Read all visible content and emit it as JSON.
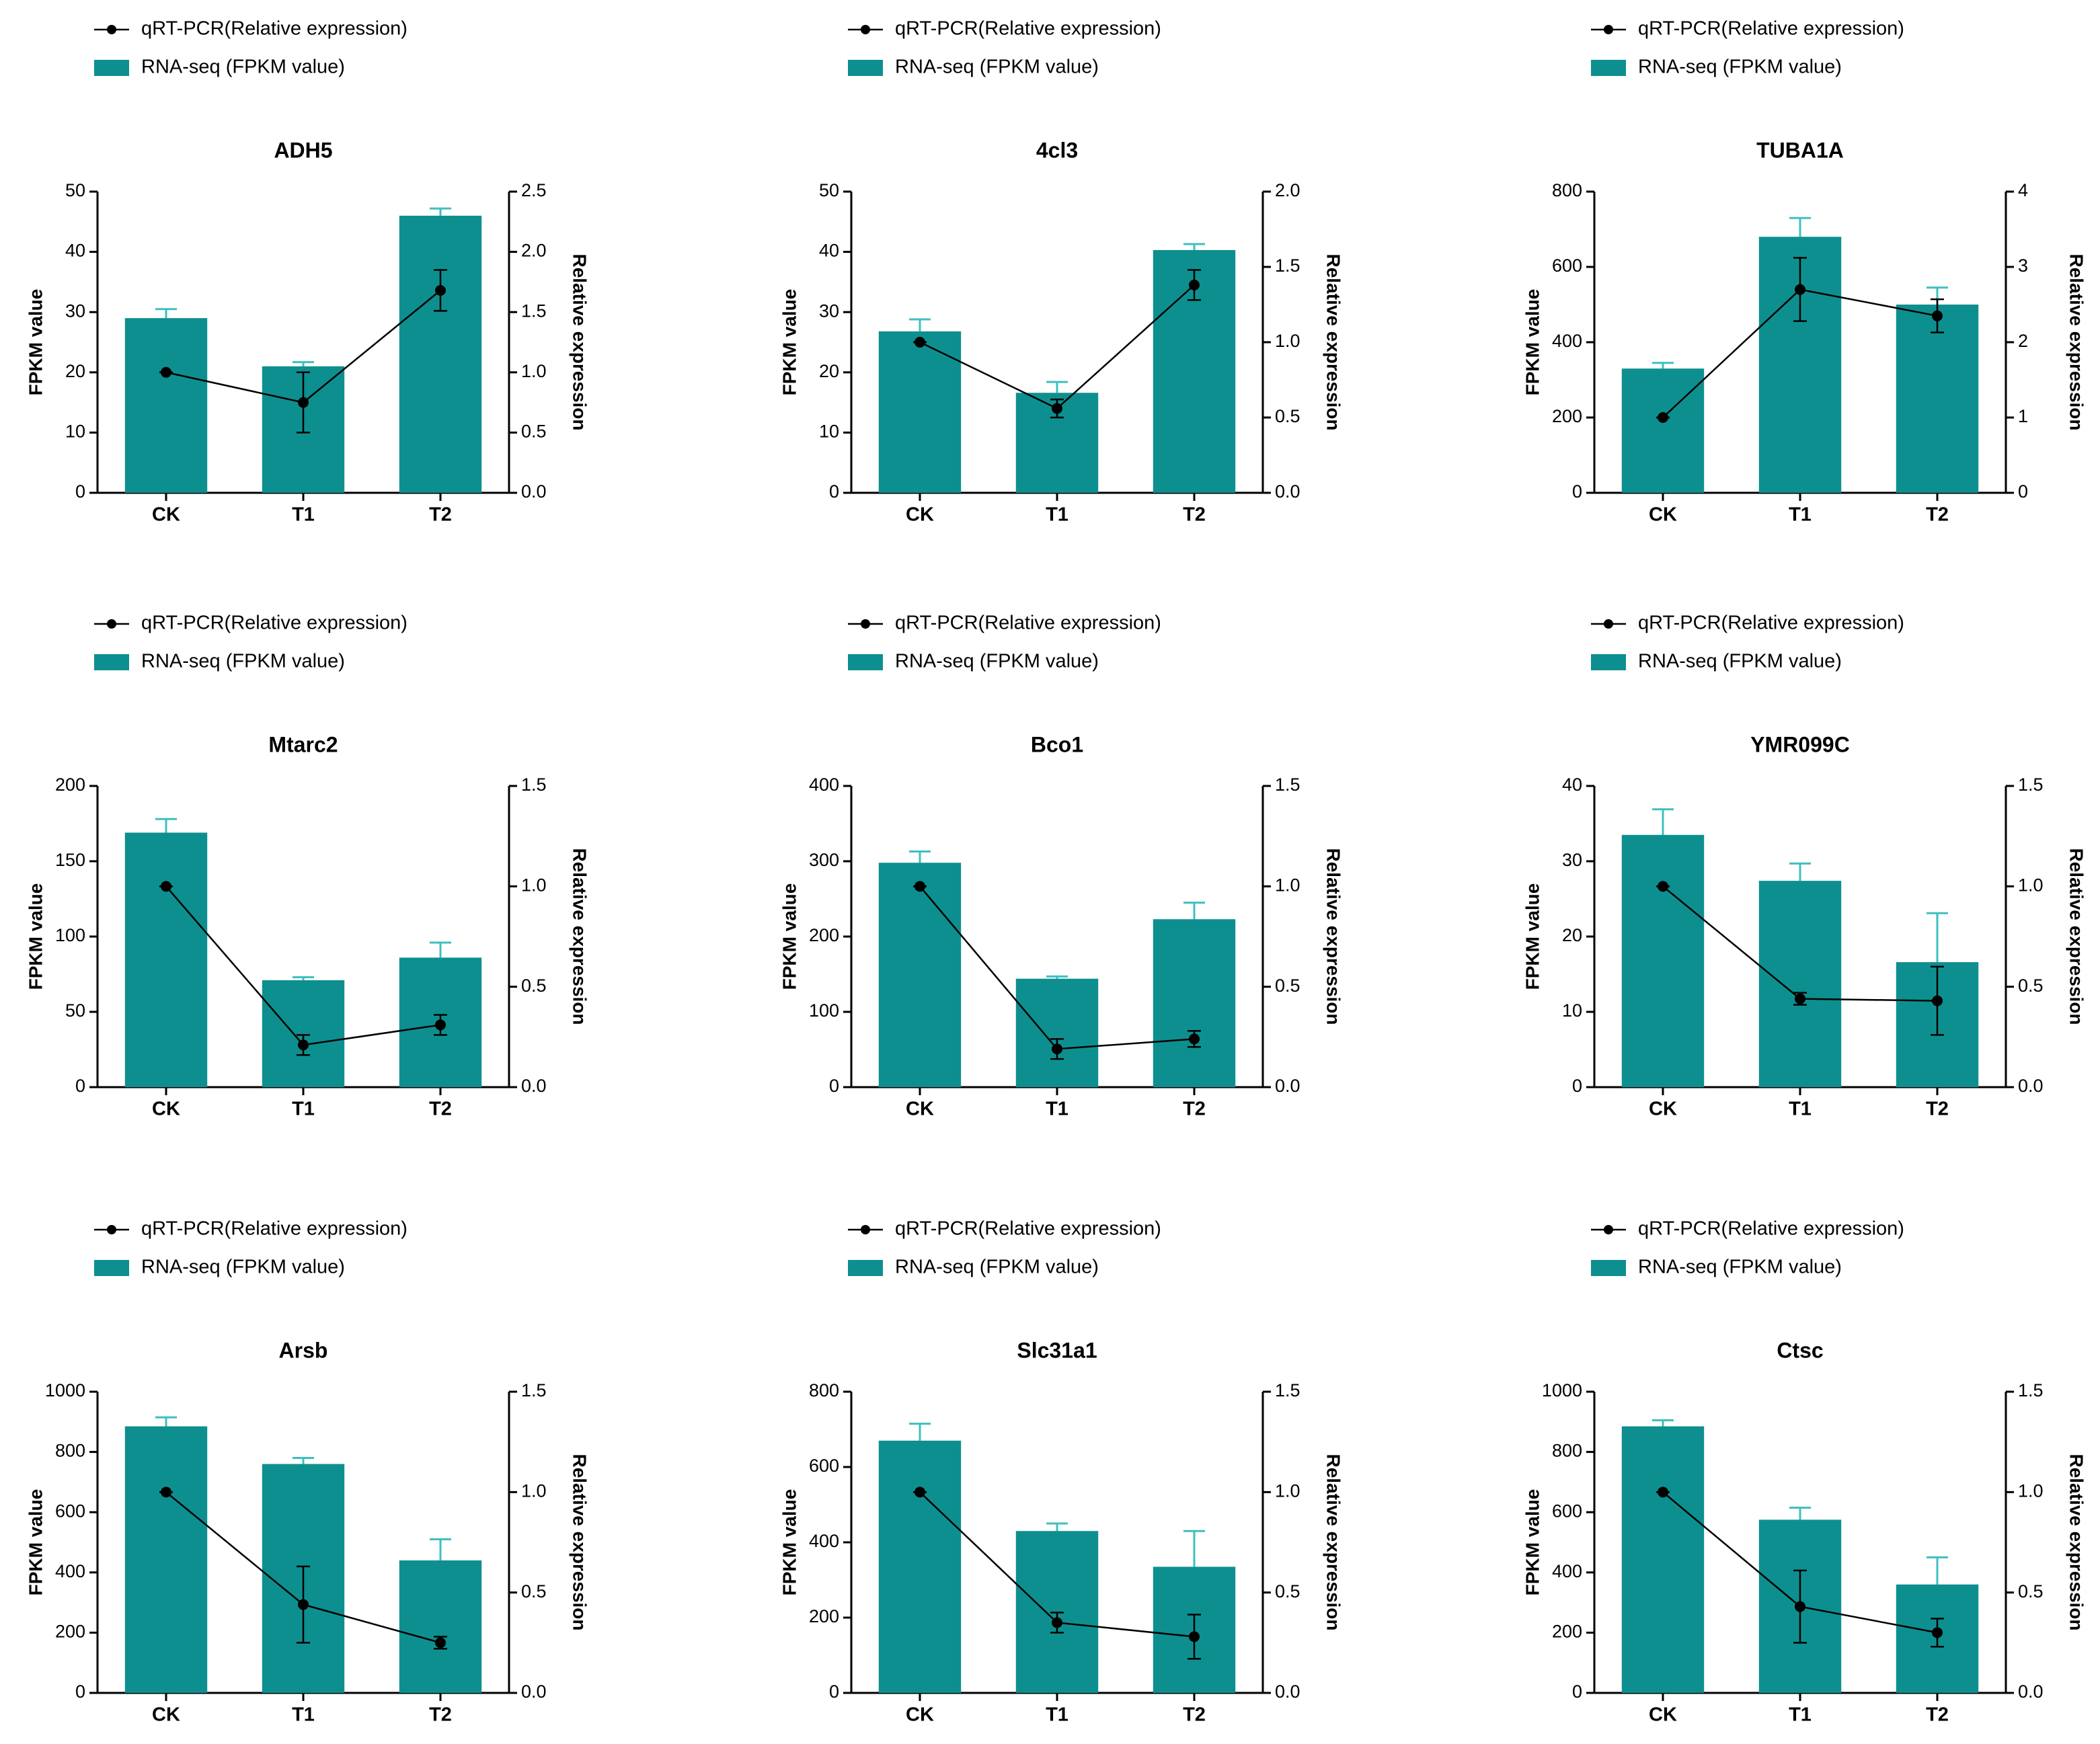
{
  "chart_data": [
    {
      "type": "bar",
      "title": "ADH5",
      "categories": [
        "CK",
        "T1",
        "T2"
      ],
      "ylabel": "FPKM value",
      "y2label": "Relative expression",
      "series": [
        {
          "name": "qRT-PCR(Relative expression)",
          "type": "line",
          "axis": "y2",
          "color": "#000000",
          "values": [
            1.0,
            0.75,
            1.68
          ],
          "errors": [
            0,
            0.25,
            0.17
          ]
        },
        {
          "name": "RNA-seq (FPKM value)",
          "type": "bar",
          "color": "#0e8f8f",
          "values": [
            29,
            21,
            46
          ],
          "errors": [
            1.5,
            0.7,
            1.2
          ]
        }
      ],
      "ylim": [
        0,
        50
      ],
      "yticks": [
        0,
        10,
        20,
        30,
        40,
        50
      ],
      "y2lim": [
        0,
        2.5
      ],
      "y2ticks": [
        {
          "value": 0,
          "label": "0.0"
        },
        0.5,
        {
          "value": 1,
          "label": "1.0"
        },
        1.5,
        {
          "value": 2,
          "label": "2.0"
        },
        2.5
      ]
    },
    {
      "type": "bar",
      "title": "4cl3",
      "categories": [
        "CK",
        "T1",
        "T2"
      ],
      "ylabel": "FPKM value",
      "y2label": "Relative expression",
      "series": [
        {
          "name": "qRT-PCR(Relative expression)",
          "type": "line",
          "axis": "y2",
          "color": "#000000",
          "values": [
            1.0,
            0.56,
            1.38
          ],
          "errors": [
            0,
            0.06,
            0.1
          ]
        },
        {
          "name": "RNA-seq (FPKM value)",
          "type": "bar",
          "color": "#0e8f8f",
          "values": [
            26.8,
            16.6,
            40.3
          ],
          "errors": [
            2,
            1.8,
            1
          ]
        }
      ],
      "ylim": [
        0,
        50
      ],
      "yticks": [
        0,
        10,
        20,
        30,
        40,
        50
      ],
      "y2lim": [
        0,
        2
      ],
      "y2ticks": [
        {
          "value": 0,
          "label": "0.0"
        },
        0.5,
        {
          "value": 1,
          "label": "1.0"
        },
        1.5,
        {
          "value": 2,
          "label": "2.0"
        }
      ]
    },
    {
      "type": "bar",
      "title": "TUBA1A",
      "categories": [
        "CK",
        "T1",
        "T2"
      ],
      "ylabel": "FPKM value",
      "y2label": "Relative expression",
      "series": [
        {
          "name": "qRT-PCR(Relative expression)",
          "type": "line",
          "axis": "y2",
          "color": "#000000",
          "values": [
            1.0,
            2.7,
            2.35
          ],
          "errors": [
            0,
            0.42,
            0.22
          ]
        },
        {
          "name": "RNA-seq (FPKM value)",
          "type": "bar",
          "color": "#0e8f8f",
          "values": [
            330,
            680,
            500
          ],
          "errors": [
            15,
            50,
            45
          ]
        }
      ],
      "ylim": [
        0,
        800
      ],
      "yticks": [
        0,
        200,
        400,
        600,
        800
      ],
      "y2lim": [
        0,
        4
      ],
      "y2ticks": [
        0,
        1,
        2,
        3,
        4
      ]
    },
    {
      "type": "bar",
      "title": "Mtarc2",
      "categories": [
        "CK",
        "T1",
        "T2"
      ],
      "ylabel": "FPKM value",
      "y2label": "Relative expression",
      "series": [
        {
          "name": "qRT-PCR(Relative expression)",
          "type": "line",
          "axis": "y2",
          "color": "#000000",
          "values": [
            1.0,
            0.21,
            0.31
          ],
          "errors": [
            0,
            0.05,
            0.05
          ]
        },
        {
          "name": "RNA-seq (FPKM value)",
          "type": "bar",
          "color": "#0e8f8f",
          "values": [
            169,
            71,
            86
          ],
          "errors": [
            9,
            2,
            10
          ]
        }
      ],
      "ylim": [
        0,
        200
      ],
      "yticks": [
        0,
        50,
        100,
        150,
        200
      ],
      "y2lim": [
        0,
        1.5
      ],
      "y2ticks": [
        {
          "value": 0,
          "label": "0.0"
        },
        0.5,
        {
          "value": 1,
          "label": "1.0"
        },
        1.5
      ]
    },
    {
      "type": "bar",
      "title": "Bco1",
      "categories": [
        "CK",
        "T1",
        "T2"
      ],
      "ylabel": "FPKM value",
      "y2label": "Relative expression",
      "series": [
        {
          "name": "qRT-PCR(Relative expression)",
          "type": "line",
          "axis": "y2",
          "color": "#000000",
          "values": [
            1.0,
            0.19,
            0.24
          ],
          "errors": [
            0,
            0.05,
            0.04
          ]
        },
        {
          "name": "RNA-seq (FPKM value)",
          "type": "bar",
          "color": "#0e8f8f",
          "values": [
            298,
            144,
            223
          ],
          "errors": [
            15,
            3,
            22
          ]
        }
      ],
      "ylim": [
        0,
        400
      ],
      "yticks": [
        0,
        100,
        200,
        300,
        400
      ],
      "y2lim": [
        0,
        1.5
      ],
      "y2ticks": [
        {
          "value": 0,
          "label": "0.0"
        },
        0.5,
        {
          "value": 1,
          "label": "1.0"
        },
        1.5
      ]
    },
    {
      "type": "bar",
      "title": "YMR099C",
      "categories": [
        "CK",
        "T1",
        "T2"
      ],
      "ylabel": "FPKM value",
      "y2label": "Relative expression",
      "series": [
        {
          "name": "qRT-PCR(Relative expression)",
          "type": "line",
          "axis": "y2",
          "color": "#000000",
          "values": [
            1.0,
            0.44,
            0.43
          ],
          "errors": [
            0,
            0.03,
            0.17
          ]
        },
        {
          "name": "RNA-seq (FPKM value)",
          "type": "bar",
          "color": "#0e8f8f",
          "values": [
            33.5,
            27.4,
            16.6
          ],
          "errors": [
            3.4,
            2.3,
            6.5
          ]
        }
      ],
      "ylim": [
        0,
        40
      ],
      "yticks": [
        0,
        10,
        20,
        30,
        40
      ],
      "y2lim": [
        0,
        1.5
      ],
      "y2ticks": [
        {
          "value": 0,
          "label": "0.0"
        },
        0.5,
        {
          "value": 1,
          "label": "1.0"
        },
        1.5
      ]
    },
    {
      "type": "bar",
      "title": "Arsb",
      "categories": [
        "CK",
        "T1",
        "T2"
      ],
      "ylabel": "FPKM value",
      "y2label": "Relative expression",
      "series": [
        {
          "name": "qRT-PCR(Relative expression)",
          "type": "line",
          "axis": "y2",
          "color": "#000000",
          "values": [
            1.0,
            0.44,
            0.25
          ],
          "errors": [
            0,
            0.19,
            0.03
          ]
        },
        {
          "name": "RNA-seq (FPKM value)",
          "type": "bar",
          "color": "#0e8f8f",
          "values": [
            885,
            760,
            440
          ],
          "errors": [
            30,
            20,
            70
          ]
        }
      ],
      "ylim": [
        0,
        1000
      ],
      "yticks": [
        0,
        200,
        400,
        600,
        800,
        1000
      ],
      "y2lim": [
        0,
        1.5
      ],
      "y2ticks": [
        {
          "value": 0,
          "label": "0.0"
        },
        0.5,
        {
          "value": 1,
          "label": "1.0"
        },
        1.5
      ]
    },
    {
      "type": "bar",
      "title": "Slc31a1",
      "categories": [
        "CK",
        "T1",
        "T2"
      ],
      "ylabel": "FPKM value",
      "y2label": "Relative expression",
      "series": [
        {
          "name": "qRT-PCR(Relative expression)",
          "type": "line",
          "axis": "y2",
          "color": "#000000",
          "values": [
            1.0,
            0.35,
            0.28
          ],
          "errors": [
            0,
            0.05,
            0.11
          ]
        },
        {
          "name": "RNA-seq (FPKM value)",
          "type": "bar",
          "color": "#0e8f8f",
          "values": [
            670,
            430,
            335
          ],
          "errors": [
            45,
            20,
            95
          ]
        }
      ],
      "ylim": [
        0,
        800
      ],
      "yticks": [
        0,
        200,
        400,
        600,
        800
      ],
      "y2lim": [
        0,
        1.5
      ],
      "y2ticks": [
        {
          "value": 0,
          "label": "0.0"
        },
        0.5,
        {
          "value": 1,
          "label": "1.0"
        },
        1.5
      ]
    },
    {
      "type": "bar",
      "title": "Ctsc",
      "categories": [
        "CK",
        "T1",
        "T2"
      ],
      "ylabel": "FPKM value",
      "y2label": "Relative expression",
      "series": [
        {
          "name": "qRT-PCR(Relative expression)",
          "type": "line",
          "axis": "y2",
          "color": "#000000",
          "values": [
            1.0,
            0.43,
            0.3
          ],
          "errors": [
            0,
            0.18,
            0.07
          ]
        },
        {
          "name": "RNA-seq (FPKM value)",
          "type": "bar",
          "color": "#0e8f8f",
          "values": [
            885,
            575,
            360
          ],
          "errors": [
            20,
            40,
            90
          ]
        }
      ],
      "ylim": [
        0,
        1000
      ],
      "yticks": [
        0,
        200,
        400,
        600,
        800,
        1000
      ],
      "y2lim": [
        0,
        1.5
      ],
      "y2ticks": [
        {
          "value": 0,
          "label": "0.0"
        },
        0.5,
        {
          "value": 1,
          "label": "1.0"
        },
        1.5
      ]
    }
  ]
}
